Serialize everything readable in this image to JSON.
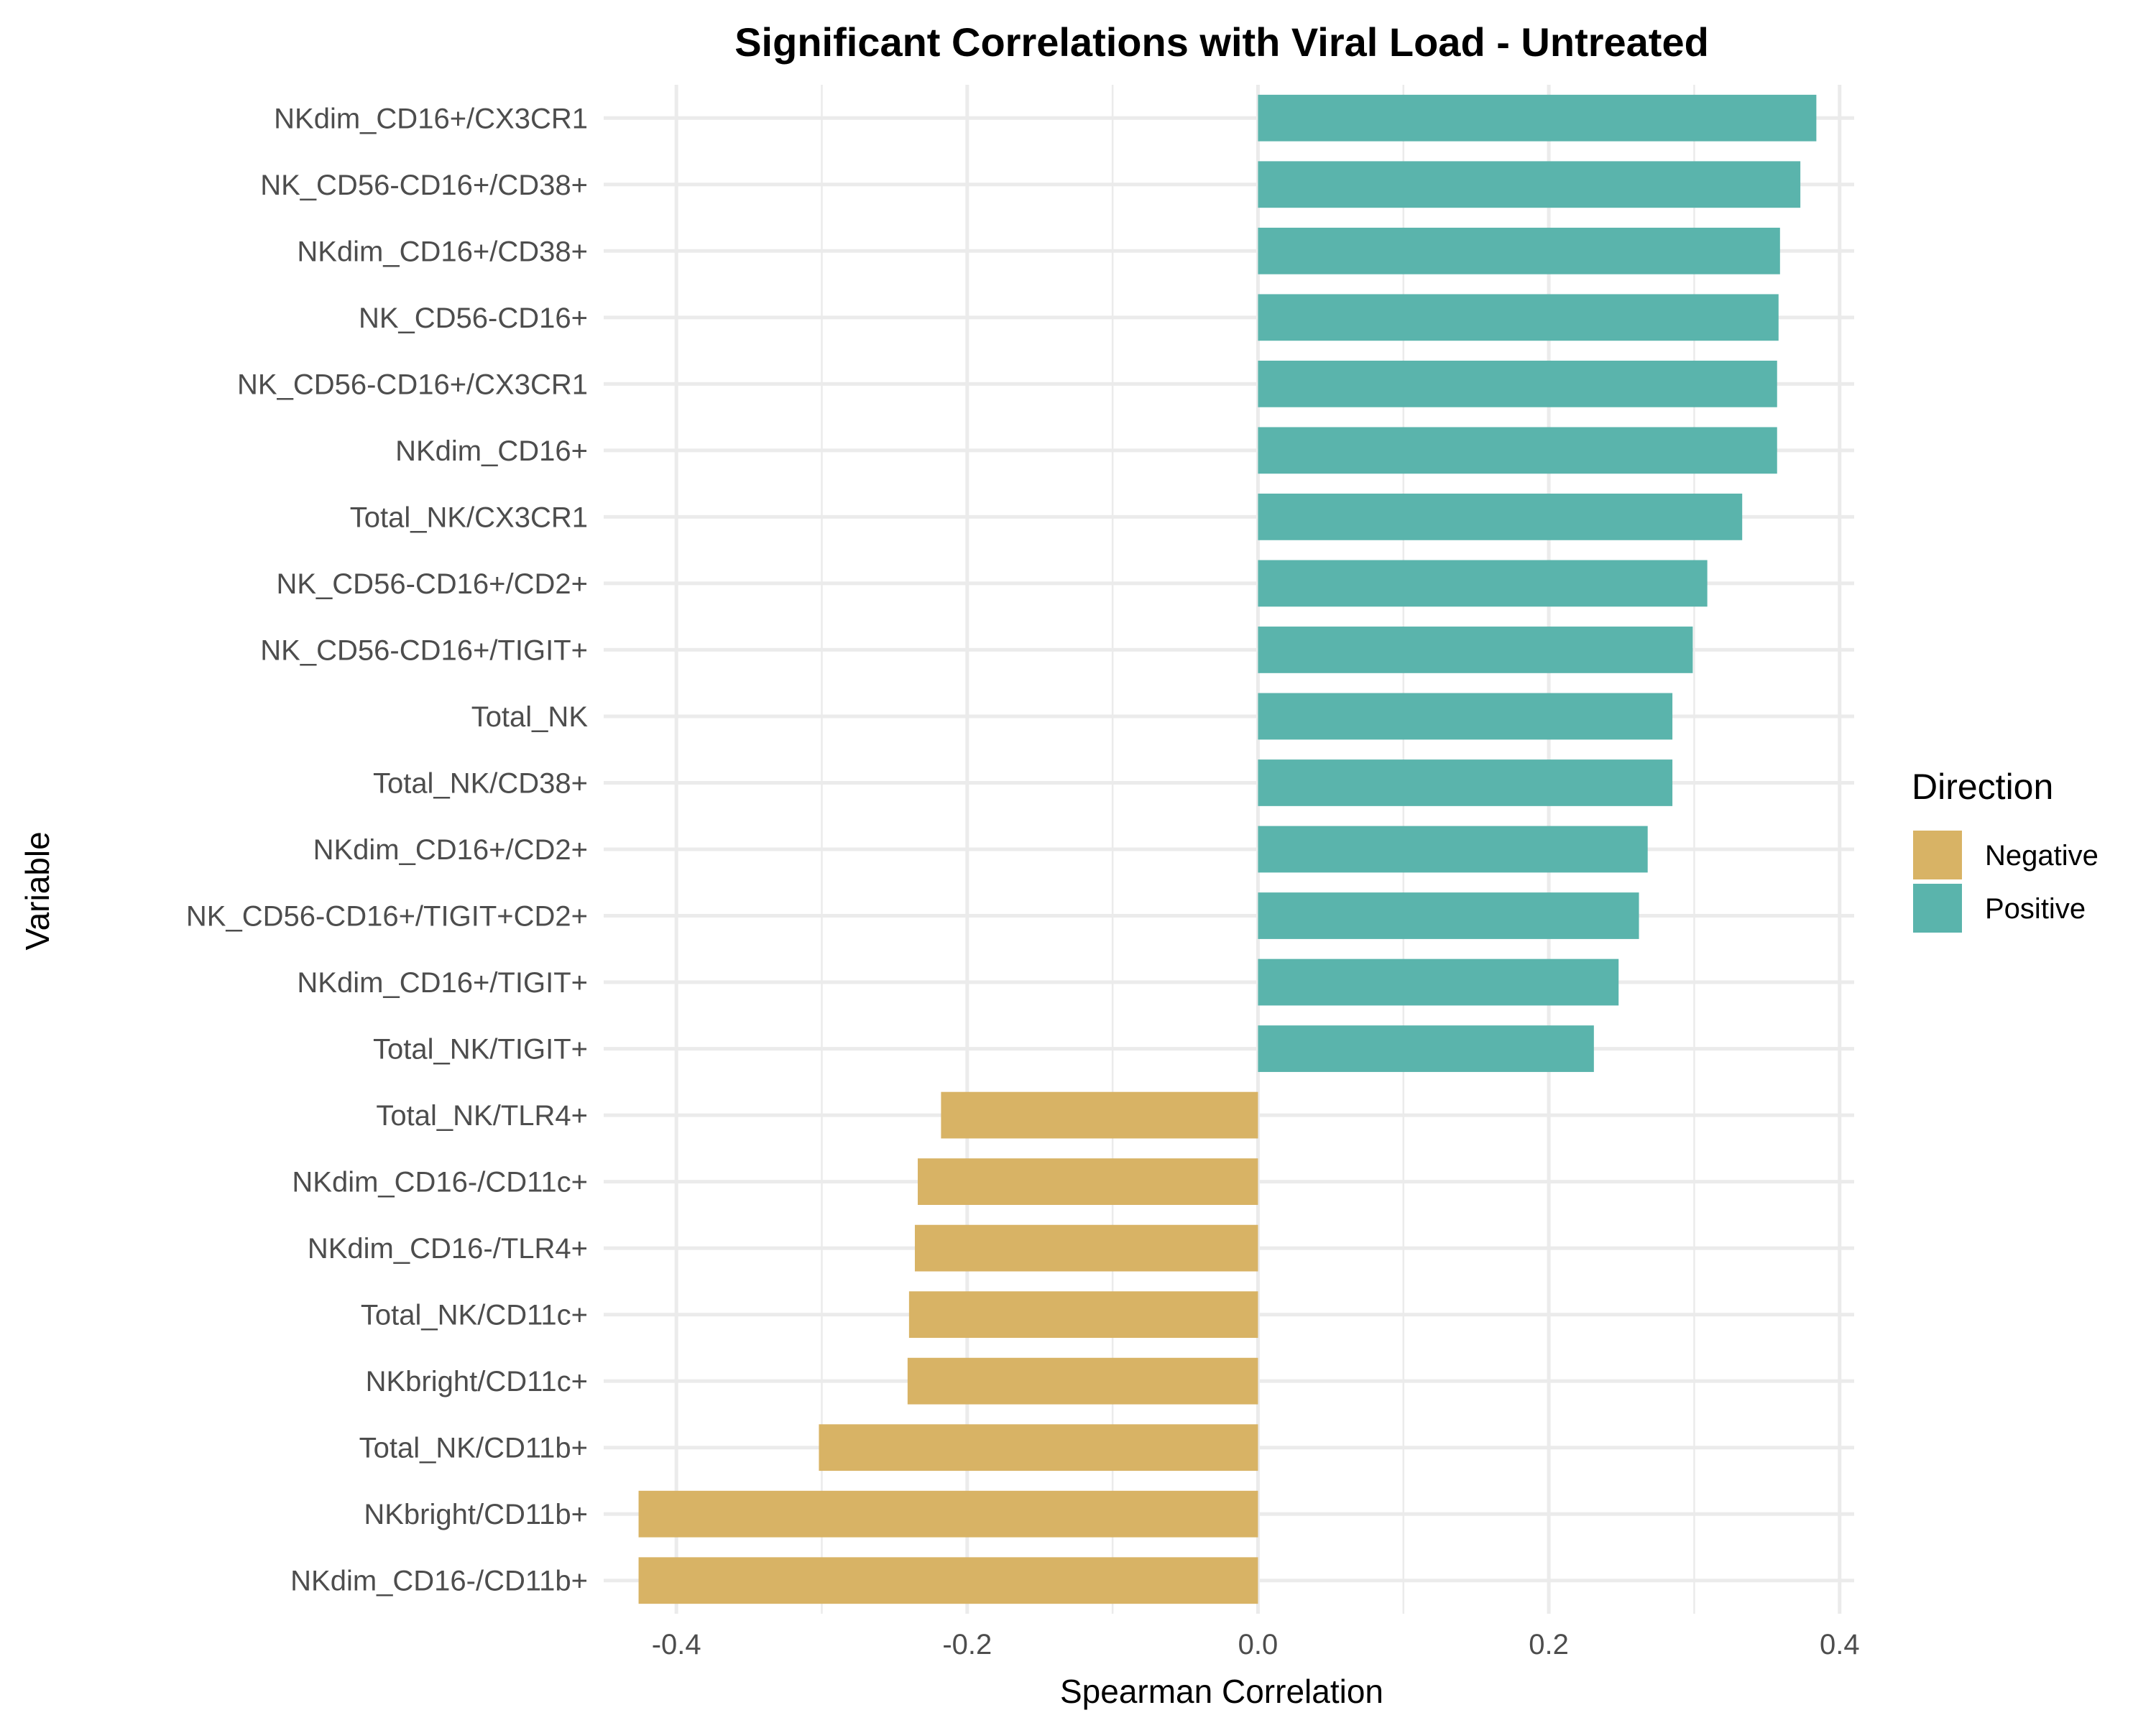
{
  "chart_data": {
    "type": "bar",
    "orientation": "horizontal",
    "title": "Significant Correlations with Viral Load - Untreated",
    "xlabel": "Spearman Correlation",
    "ylabel": "Variable",
    "xlim": [
      -0.45,
      0.41
    ],
    "xticks": [
      -0.4,
      -0.2,
      0.0,
      0.2,
      0.4
    ],
    "xtick_labels": [
      "-0.4",
      "-0.2",
      "0.0",
      "0.2",
      "0.4"
    ],
    "grid": true,
    "legend": {
      "title": "Direction",
      "placement": "right",
      "entries": [
        {
          "label": "Negative",
          "color": "#D8B365"
        },
        {
          "label": "Positive",
          "color": "#5AB4AC"
        }
      ]
    },
    "categories": [
      "NKdim_CD16+/CX3CR1",
      "NK_CD56-CD16+/CD38+",
      "NKdim_CD16+/CD38+",
      "NK_CD56-CD16+",
      "NK_CD56-CD16+/CX3CR1",
      "NKdim_CD16+",
      "Total_NK/CX3CR1",
      "NK_CD56-CD16+/CD2+",
      "NK_CD56-CD16+/TIGIT+",
      "Total_NK",
      "Total_NK/CD38+",
      "NKdim_CD16+/CD2+",
      "NK_CD56-CD16+/TIGIT+CD2+",
      "NKdim_CD16+/TIGIT+",
      "Total_NK/TIGIT+",
      "Total_NK/TLR4+",
      "NKdim_CD16-/CD11c+",
      "NKdim_CD16-/TLR4+",
      "Total_NK/CD11c+",
      "NKbright/CD11c+",
      "Total_NK/CD11b+",
      "NKbright/CD11b+",
      "NKdim_CD16-/CD11b+"
    ],
    "values": [
      0.384,
      0.373,
      0.359,
      0.358,
      0.357,
      0.357,
      0.333,
      0.309,
      0.299,
      0.285,
      0.285,
      0.268,
      0.262,
      0.248,
      0.231,
      -0.218,
      -0.234,
      -0.236,
      -0.24,
      -0.241,
      -0.302,
      -0.426,
      -0.426
    ],
    "direction": [
      "Positive",
      "Positive",
      "Positive",
      "Positive",
      "Positive",
      "Positive",
      "Positive",
      "Positive",
      "Positive",
      "Positive",
      "Positive",
      "Positive",
      "Positive",
      "Positive",
      "Positive",
      "Negative",
      "Negative",
      "Negative",
      "Negative",
      "Negative",
      "Negative",
      "Negative",
      "Negative"
    ]
  }
}
